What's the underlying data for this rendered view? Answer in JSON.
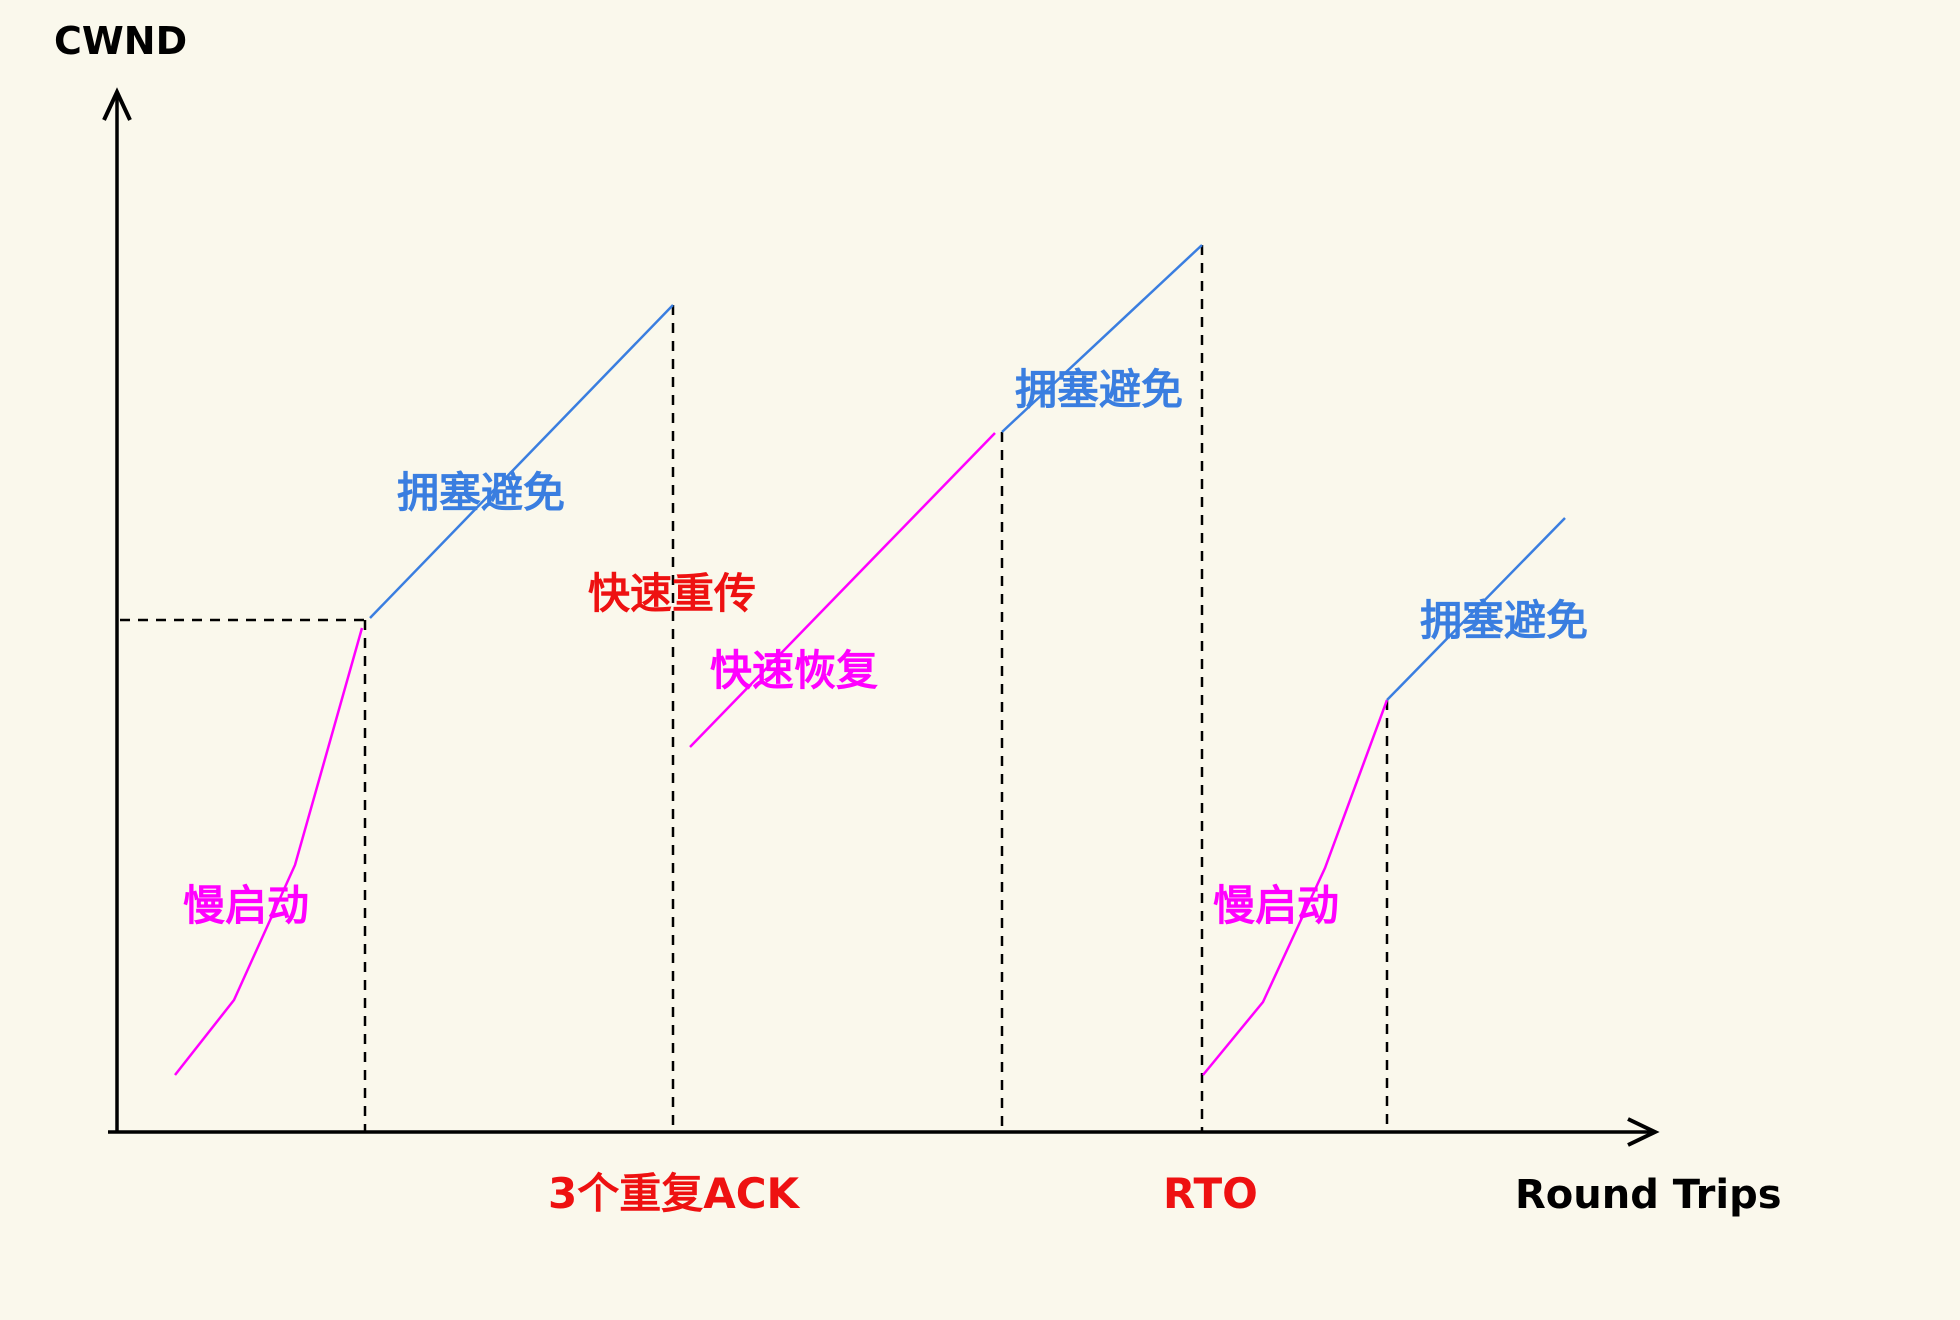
{
  "axes": {
    "y_label": "CWND",
    "x_label": "Round Trips"
  },
  "labels": {
    "slow_start_1": "慢启动",
    "avoid_1": "拥塞避免",
    "fast_retransmit": "快速重传",
    "fast_recovery": "快速恢复",
    "avoid_2": "拥塞避免",
    "slow_start_2": "慢启动",
    "avoid_3": "拥塞避免"
  },
  "events": {
    "triple_dup_ack": "3个重复ACK",
    "rto": "RTO"
  },
  "colors": {
    "background": "#faf8ec",
    "axis": "#000000",
    "slow_start": "#ff00ff",
    "congestion_avoidance": "#3a7ee0",
    "fast_retransmit": "#ee1111",
    "fast_recovery": "#ff00ff",
    "event_label": "#ee1111",
    "threshold": "#000000"
  }
}
